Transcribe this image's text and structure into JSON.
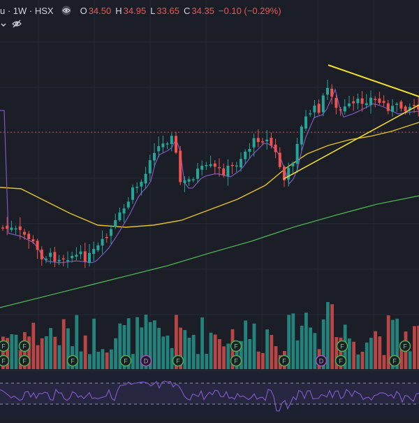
{
  "legend": {
    "symbol": "u · 1W · HSX",
    "o_label": "O",
    "o": "34.50",
    "h_label": "H",
    "h": "34.95",
    "l_label": "L",
    "l": "33.65",
    "c_label": "C",
    "c": "34.35",
    "change": "−0.10 (−0.29%)"
  },
  "icons": {
    "visibility": "eye-icon",
    "hide": "eye-slash-icon"
  },
  "markers": {
    "dividend_label": "F",
    "other_label": "D"
  },
  "colors": {
    "up": "#26a69a",
    "down": "#ef5350",
    "ma_short": "#7e57c2",
    "ma_mid": "#e6c229",
    "ma_long": "#4caf50",
    "trendline": "#f5e12a",
    "rsi": "#7e57c2",
    "price_line": "#ef5350"
  }
}
